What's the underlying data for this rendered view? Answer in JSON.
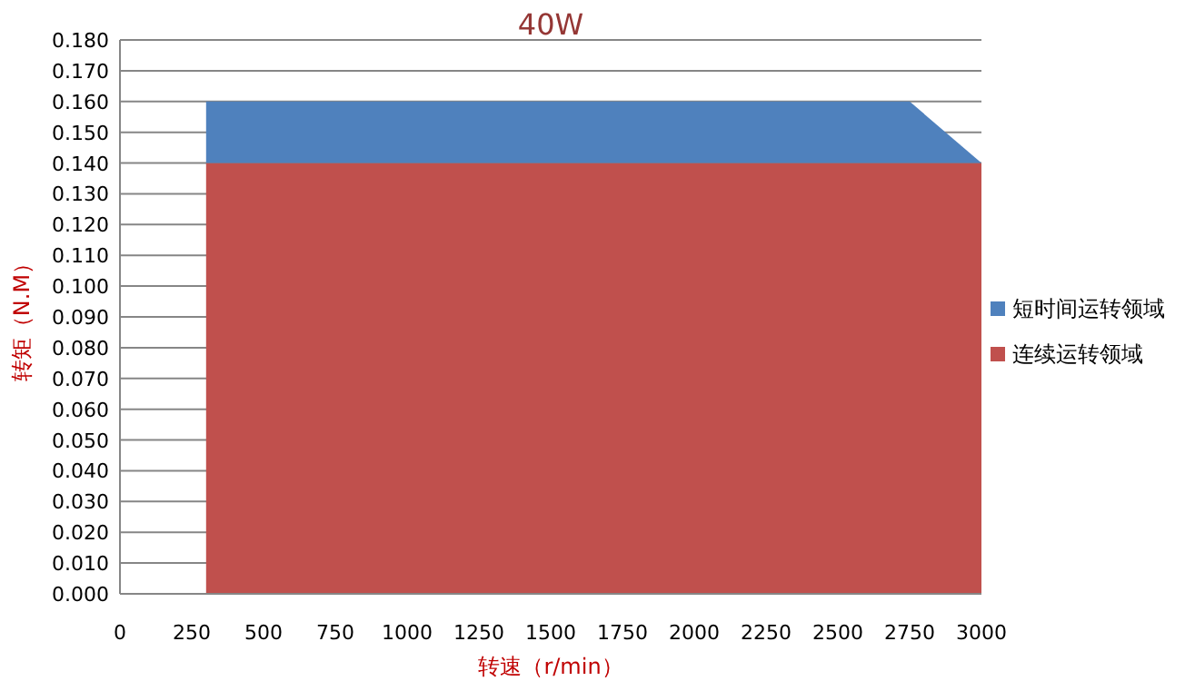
{
  "chart_data": {
    "type": "area",
    "title": "40W",
    "xlabel": "转速（r/min）",
    "ylabel": "转矩（N.M）",
    "stacked": true,
    "legend": "right",
    "grid": "y",
    "xlim": [
      0,
      3000
    ],
    "xticks": [
      0,
      250,
      500,
      750,
      1000,
      1250,
      1500,
      1750,
      2000,
      2250,
      2500,
      2750,
      3000
    ],
    "ylim": [
      0,
      0.18
    ],
    "yticks": [
      {
        "value": 0,
        "label": "0.000"
      },
      {
        "value": 0.01,
        "label": "0.010"
      },
      {
        "value": 0.02,
        "label": "0.020"
      },
      {
        "value": 0.03,
        "label": "0.030"
      },
      {
        "value": 0.04,
        "label": "0.040"
      },
      {
        "value": 0.05,
        "label": "0.050"
      },
      {
        "value": 0.06,
        "label": "0.060"
      },
      {
        "value": 0.07,
        "label": "0.070"
      },
      {
        "value": 0.08,
        "label": "0.080"
      },
      {
        "value": 0.09,
        "label": "0.090"
      },
      {
        "value": 0.1,
        "label": "0.100"
      },
      {
        "value": 0.11,
        "label": "0.110"
      },
      {
        "value": 0.12,
        "label": "0.120"
      },
      {
        "value": 0.13,
        "label": "0.130"
      },
      {
        "value": 0.14,
        "label": "0.140"
      },
      {
        "value": 0.15,
        "label": "0.150"
      },
      {
        "value": 0.16,
        "label": "0.160"
      },
      {
        "value": 0.17,
        "label": "0.170"
      },
      {
        "value": 0.18,
        "label": "0.180"
      }
    ],
    "series": [
      {
        "name": "连续运转领域",
        "color": "#c0504d",
        "x": [
          300,
          2750,
          3000
        ],
        "values": [
          0.14,
          0.14,
          0.14
        ]
      },
      {
        "name": "短时间运转领域",
        "color": "#4f81bd",
        "x": [
          300,
          2750,
          3000
        ],
        "values": [
          0.02,
          0.02,
          0
        ]
      }
    ]
  }
}
